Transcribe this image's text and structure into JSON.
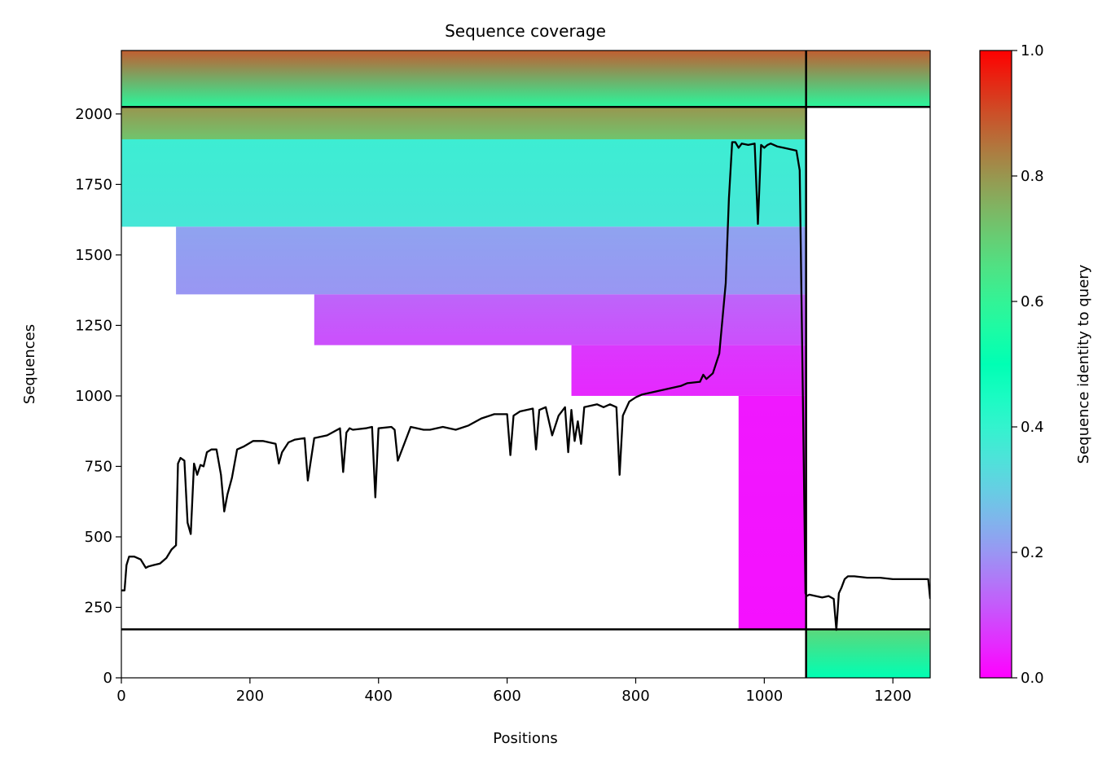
{
  "chart_data": {
    "type": "heatmap",
    "title": "Sequence coverage",
    "xlabel": "Positions",
    "ylabel": "Sequences",
    "xlim": [
      0,
      1258
    ],
    "ylim": [
      0,
      2225
    ],
    "xticks": [
      0,
      200,
      400,
      600,
      800,
      1000,
      1200
    ],
    "yticks": [
      0,
      250,
      500,
      750,
      1000,
      1250,
      1500,
      1750,
      2000
    ],
    "colorbar": {
      "label": "Sequence identity to query",
      "range": [
        0,
        1
      ],
      "ticks": [
        "0.0",
        "0.2",
        "0.4",
        "0.6",
        "0.8",
        "1.0"
      ],
      "colormap": "rainbow"
    },
    "grid": false,
    "chain_boundaries": {
      "x": [
        1065
      ],
      "y": [
        172,
        2025
      ]
    },
    "coverage_blocks": [
      {
        "x": [
          0,
          1065
        ],
        "y": [
          2025,
          2225
        ],
        "identity": [
          0.88,
          0.58
        ]
      },
      {
        "x": [
          1065,
          1258
        ],
        "y": [
          2025,
          2225
        ],
        "identity": [
          0.88,
          0.58
        ]
      },
      {
        "x": [
          0,
          1065
        ],
        "y": [
          1910,
          2025
        ],
        "identity": [
          0.8,
          0.72
        ]
      },
      {
        "x": [
          0,
          1065
        ],
        "y": [
          1600,
          1910
        ],
        "identity": [
          0.38,
          0.36
        ]
      },
      {
        "x": [
          85,
          1065
        ],
        "y": [
          1360,
          1600
        ],
        "identity": [
          0.22,
          0.2
        ]
      },
      {
        "x": [
          300,
          1065
        ],
        "y": [
          1180,
          1360
        ],
        "identity": [
          0.13,
          0.1
        ]
      },
      {
        "x": [
          700,
          1065
        ],
        "y": [
          1000,
          1180
        ],
        "identity": [
          0.07,
          0.05
        ]
      },
      {
        "x": [
          960,
          1065
        ],
        "y": [
          172,
          1000
        ],
        "identity": [
          0.03,
          0.02
        ]
      },
      {
        "x": [
          1065,
          1258
        ],
        "y": [
          0,
          172
        ],
        "identity": [
          0.68,
          0.5
        ]
      }
    ],
    "coverage_line": {
      "name": "coverage",
      "x": [
        0,
        5,
        8,
        12,
        20,
        30,
        38,
        42,
        50,
        60,
        70,
        78,
        85,
        88,
        92,
        98,
        103,
        108,
        113,
        118,
        123,
        128,
        133,
        140,
        148,
        155,
        160,
        165,
        172,
        180,
        190,
        205,
        220,
        240,
        245,
        250,
        260,
        270,
        285,
        290,
        300,
        320,
        340,
        345,
        350,
        355,
        360,
        380,
        390,
        395,
        400,
        420,
        425,
        430,
        450,
        470,
        480,
        500,
        520,
        540,
        560,
        580,
        600,
        605,
        610,
        620,
        640,
        645,
        650,
        660,
        670,
        680,
        690,
        695,
        700,
        705,
        710,
        715,
        720,
        740,
        750,
        760,
        770,
        775,
        780,
        790,
        800,
        810,
        830,
        850,
        870,
        880,
        900,
        905,
        910,
        920,
        930,
        940,
        945,
        950,
        955,
        960,
        965,
        975,
        985,
        990,
        995,
        1000,
        1005,
        1010,
        1020,
        1030,
        1040,
        1050,
        1055,
        1060,
        1064,
        1066,
        1070,
        1080,
        1090,
        1100,
        1108,
        1112,
        1116,
        1120,
        1125,
        1130,
        1140,
        1160,
        1180,
        1200,
        1220,
        1240,
        1255,
        1258
      ],
      "y": [
        310,
        310,
        400,
        430,
        430,
        420,
        390,
        395,
        400,
        405,
        425,
        455,
        470,
        760,
        780,
        770,
        550,
        510,
        760,
        720,
        755,
        750,
        800,
        810,
        810,
        720,
        590,
        650,
        710,
        810,
        820,
        840,
        840,
        830,
        760,
        800,
        835,
        845,
        850,
        700,
        850,
        860,
        885,
        730,
        870,
        885,
        880,
        885,
        890,
        640,
        885,
        890,
        880,
        770,
        890,
        880,
        880,
        890,
        880,
        895,
        920,
        935,
        935,
        790,
        930,
        945,
        955,
        810,
        950,
        960,
        860,
        930,
        960,
        800,
        950,
        840,
        910,
        830,
        960,
        970,
        960,
        970,
        960,
        720,
        930,
        980,
        995,
        1005,
        1015,
        1025,
        1035,
        1045,
        1050,
        1075,
        1060,
        1080,
        1150,
        1400,
        1700,
        1900,
        1900,
        1880,
        1895,
        1890,
        1895,
        1610,
        1890,
        1880,
        1890,
        1895,
        1885,
        1880,
        1875,
        1870,
        1800,
        1000,
        300,
        290,
        295,
        290,
        285,
        290,
        280,
        170,
        300,
        320,
        350,
        360,
        360,
        355,
        355,
        350,
        350,
        350,
        350,
        280
      ]
    }
  }
}
